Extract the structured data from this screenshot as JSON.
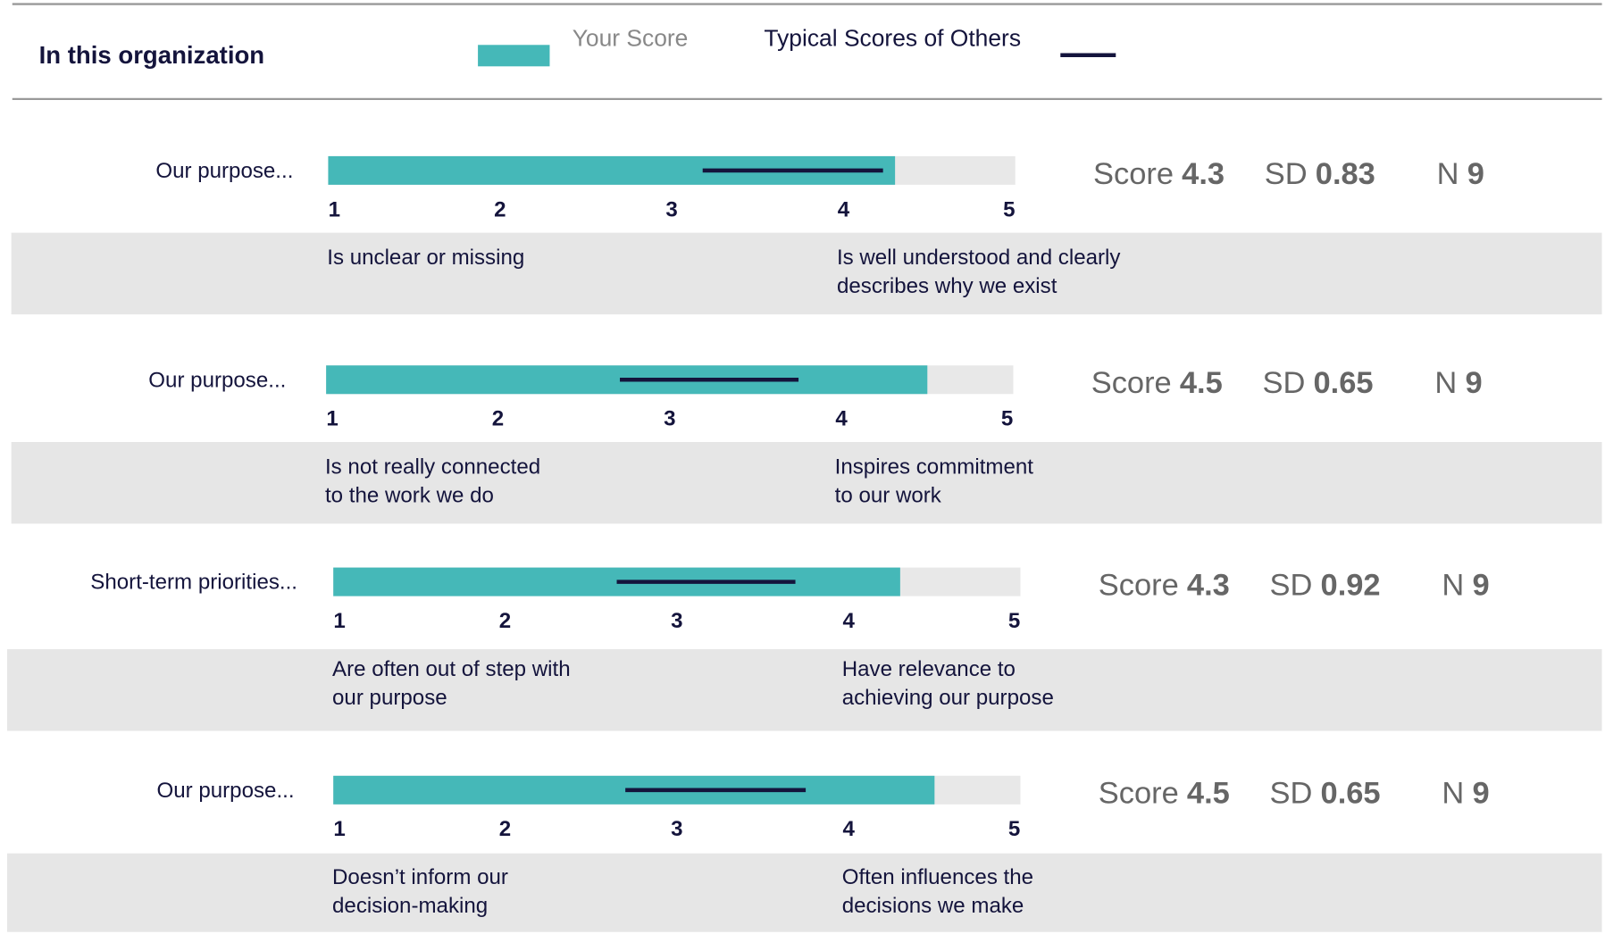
{
  "header": {
    "title": "In this organization",
    "legend": {
      "your_score": "Your Score",
      "typical": "Typical Scores of Others",
      "your_color": "#45b8b8",
      "typical_color": "#14143c"
    }
  },
  "stat_labels": [
    "Score",
    "SD",
    "N"
  ],
  "scale": [
    1,
    5
  ],
  "scale_ticks": [
    1,
    2,
    3,
    4,
    5
  ],
  "items": [
    {
      "label": "Our purpose...",
      "score": 4.3,
      "sd": 0.83,
      "n": 9,
      "typical_range": [
        3.18,
        4.23
      ],
      "low": [
        "Is unclear or missing"
      ],
      "high": [
        "Is well understood and clearly",
        "describes why we exist"
      ]
    },
    {
      "label": "Our purpose...",
      "score": 4.5,
      "sd": 0.65,
      "n": 9,
      "typical_range": [
        2.71,
        3.75
      ],
      "low": [
        "Is not really connected",
        "to the work we do"
      ],
      "high": [
        "Inspires commitment",
        "to our work"
      ]
    },
    {
      "label": "Short-term priorities...",
      "score": 4.3,
      "sd": 0.92,
      "n": 9,
      "typical_range": [
        2.65,
        3.69
      ],
      "low": [
        "Are often out of step with",
        "our purpose"
      ],
      "high": [
        "Have relevance to",
        "achieving our purpose"
      ]
    },
    {
      "label": "Our purpose...",
      "score": 4.5,
      "sd": 0.65,
      "n": 9,
      "typical_range": [
        2.7,
        3.75
      ],
      "low": [
        "Doesn’t inform our",
        "decision-making"
      ],
      "high": [
        "Often influences the",
        "decisions we make"
      ]
    }
  ]
}
